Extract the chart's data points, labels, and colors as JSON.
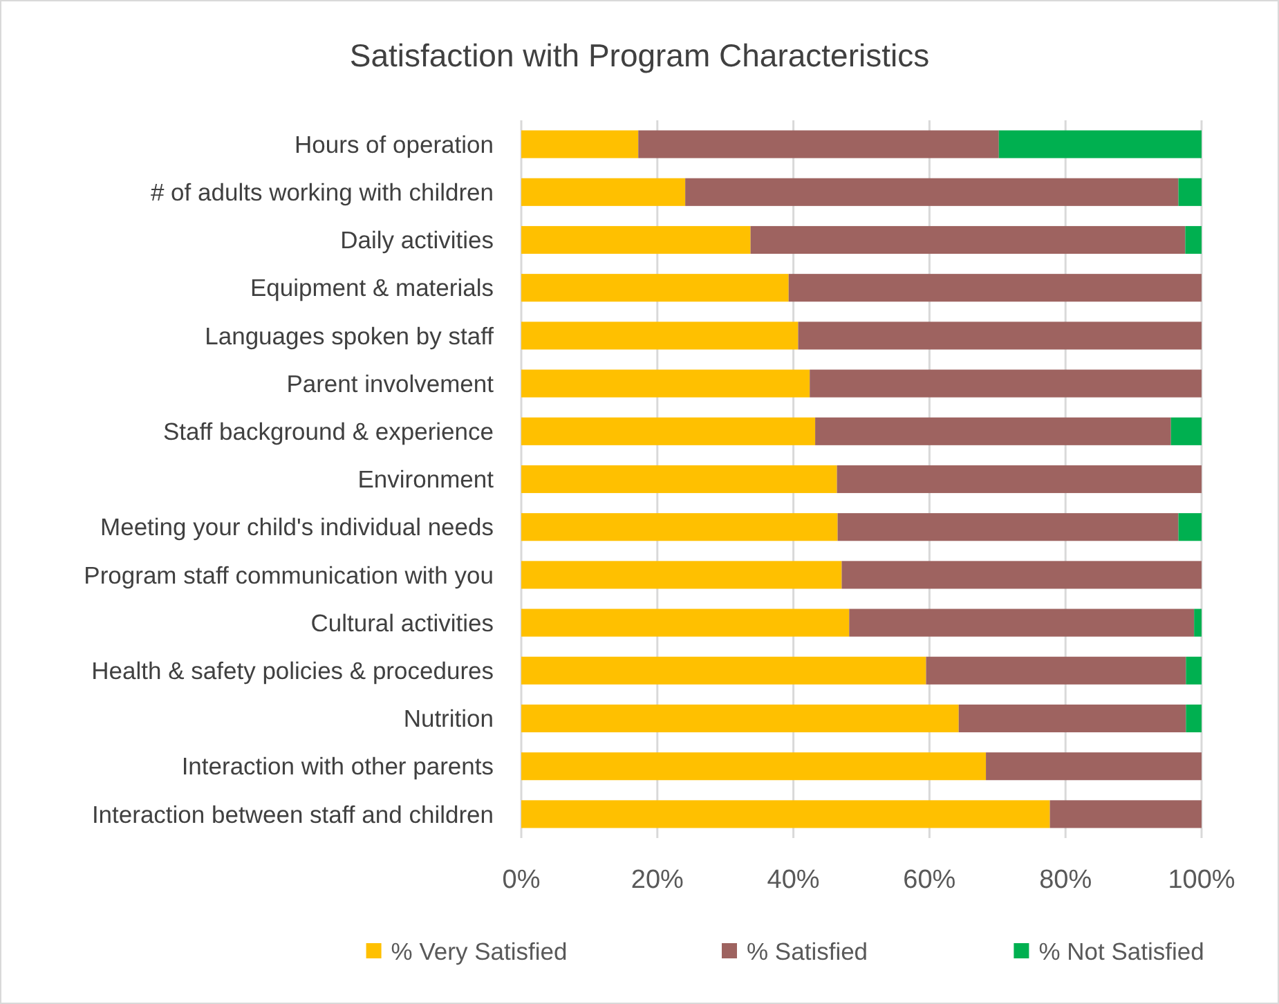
{
  "chart_data": {
    "type": "bar",
    "title": "Satisfaction with Program Characteristics",
    "orientation": "horizontal",
    "stacked": true,
    "categories": [
      "Hours of operation",
      "# of adults working with children",
      "Daily activities",
      "Equipment & materials",
      "Languages spoken by staff",
      "Parent involvement",
      "Staff background & experience",
      "Environment",
      "Meeting your child's individual needs",
      "Program staff communication with you",
      "Cultural activities",
      "Health & safety policies & procedures",
      "Nutrition",
      "Interaction with other parents",
      "Interaction between staff and children"
    ],
    "series": [
      {
        "name": "% Very Satisfied",
        "color": "#ffc000",
        "values": [
          17.2,
          24.1,
          33.7,
          39.3,
          40.7,
          42.4,
          43.2,
          46.4,
          46.5,
          47.1,
          48.2,
          59.5,
          64.3,
          68.3,
          77.7
        ]
      },
      {
        "name": "% Satisfied",
        "color": "#9e6360",
        "values": [
          53,
          72.5,
          63.9,
          60.7,
          59.3,
          57.6,
          52.3,
          53.6,
          50.1,
          52.9,
          50.7,
          38.2,
          33.4,
          31.7,
          22.3
        ]
      },
      {
        "name": "% Not Satisfied",
        "color": "#00b050",
        "values": [
          29.8,
          3.4,
          2.4,
          0,
          0,
          0,
          4.5,
          0,
          3.4,
          0,
          1.1,
          2.3,
          2.3,
          0,
          0
        ]
      }
    ],
    "xlim": [
      0,
      100
    ],
    "xticks": [
      {
        "value": 0,
        "label": "0%"
      },
      {
        "value": 20,
        "label": "20%"
      },
      {
        "value": 40,
        "label": "40%"
      },
      {
        "value": 60,
        "label": "60%"
      },
      {
        "value": 80,
        "label": "80%"
      },
      {
        "value": 100,
        "label": "100%"
      }
    ],
    "grid": "x",
    "legend": "bottom"
  }
}
